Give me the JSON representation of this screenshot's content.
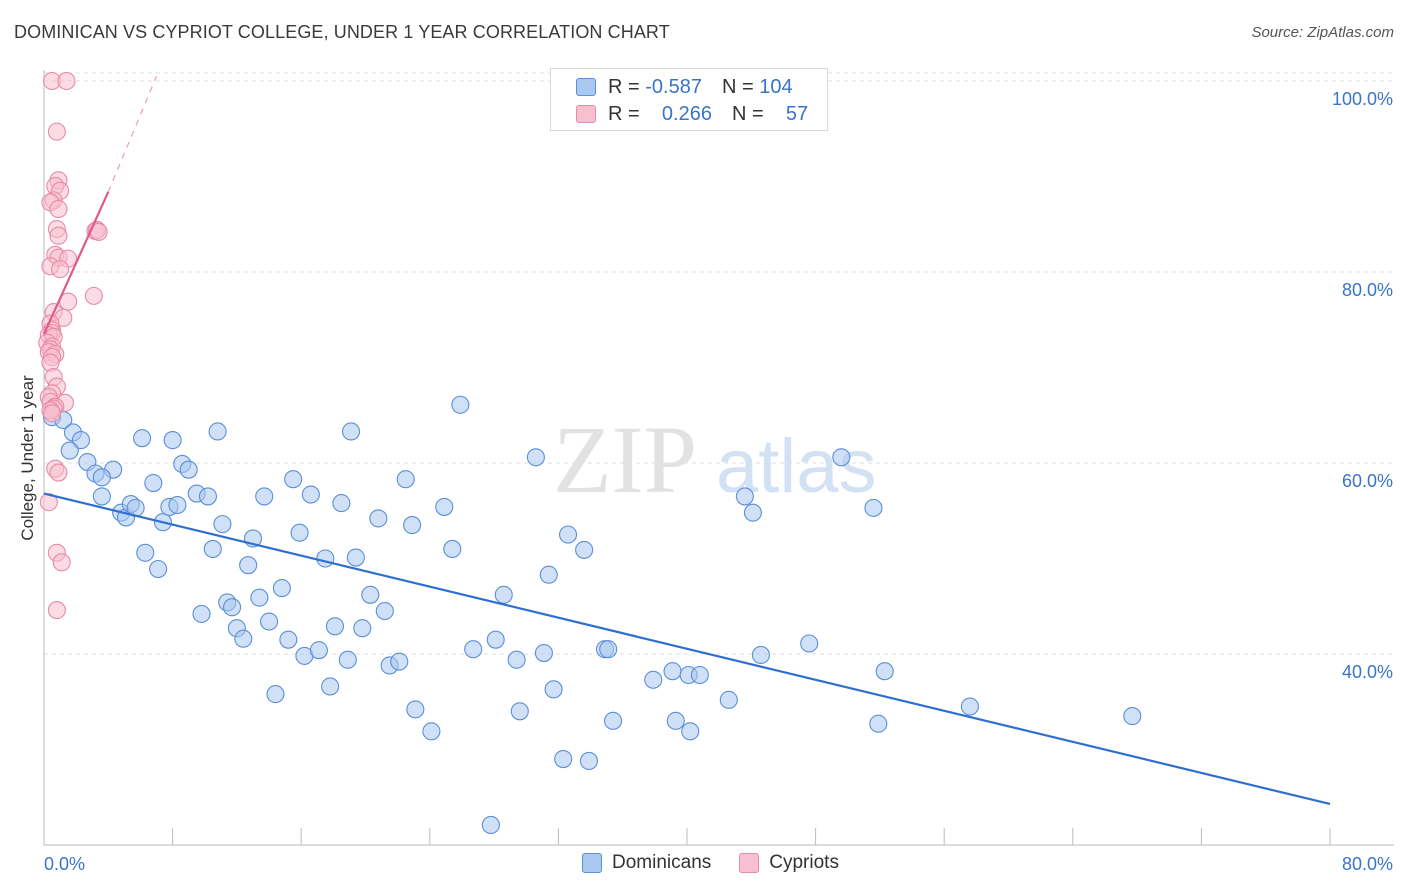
{
  "title": "DOMINICAN VS CYPRIOT COLLEGE, UNDER 1 YEAR CORRELATION CHART",
  "source": "Source: ZipAtlas.com",
  "watermark": {
    "zip": "ZIP",
    "atlas": "atlas"
  },
  "legend": {
    "r_label": "R =",
    "n_label": "N =",
    "rows": [
      {
        "name": "Dominicans",
        "r": "-0.587",
        "n": "104",
        "fill": "#a9c8f0",
        "stroke": "#5b8fd6"
      },
      {
        "name": "Cypriots",
        "r": "0.266",
        "n": "57",
        "fill": "#f7bfd0",
        "stroke": "#e88aa8"
      }
    ]
  },
  "chart_data": {
    "type": "scatter",
    "title": "DOMINICAN VS CYPRIOT COLLEGE, UNDER 1 YEAR CORRELATION CHART",
    "xlabel": "",
    "ylabel": "College, Under 1 year",
    "xlim": [
      0,
      80
    ],
    "ylim": [
      22,
      102
    ],
    "x_tick_labels": [
      "0.0%",
      "80.0%"
    ],
    "y_ticks": [
      40,
      60,
      80,
      100
    ],
    "y_tick_labels": [
      "40.0%",
      "60.0%",
      "80.0%",
      "100.0%"
    ],
    "grid": true,
    "legend_position": "top-center",
    "series": [
      {
        "name": "Dominicans",
        "color": "#5b8fd6",
        "fill": "#a9c8f0",
        "trend": {
          "x": [
            0,
            80
          ],
          "y": [
            56.8,
            24.3
          ],
          "style": "solid",
          "color": "#2e6fd0"
        },
        "points": [
          [
            0.5,
            64.8
          ],
          [
            1.2,
            64.5
          ],
          [
            1.8,
            63.2
          ],
          [
            2.3,
            62.4
          ],
          [
            1.6,
            61.3
          ],
          [
            2.7,
            60.1
          ],
          [
            3.2,
            58.9
          ],
          [
            4.3,
            59.3
          ],
          [
            3.6,
            58.5
          ],
          [
            3.6,
            56.5
          ],
          [
            4.8,
            54.8
          ],
          [
            5.1,
            54.3
          ],
          [
            5.4,
            55.7
          ],
          [
            5.7,
            55.3
          ],
          [
            6.1,
            62.6
          ],
          [
            6.3,
            50.6
          ],
          [
            6.8,
            57.9
          ],
          [
            7.1,
            48.9
          ],
          [
            7.4,
            53.8
          ],
          [
            7.8,
            55.4
          ],
          [
            8.0,
            62.4
          ],
          [
            8.3,
            55.6
          ],
          [
            8.6,
            59.9
          ],
          [
            9.0,
            59.3
          ],
          [
            9.5,
            56.8
          ],
          [
            9.8,
            44.2
          ],
          [
            10.2,
            56.5
          ],
          [
            10.5,
            51.0
          ],
          [
            10.8,
            63.3
          ],
          [
            11.1,
            53.6
          ],
          [
            11.4,
            45.4
          ],
          [
            11.7,
            44.9
          ],
          [
            12.0,
            42.7
          ],
          [
            12.4,
            41.6
          ],
          [
            12.7,
            49.3
          ],
          [
            13.0,
            52.1
          ],
          [
            13.4,
            45.9
          ],
          [
            13.7,
            56.5
          ],
          [
            14.0,
            43.4
          ],
          [
            14.4,
            35.8
          ],
          [
            14.8,
            46.9
          ],
          [
            15.2,
            41.5
          ],
          [
            15.5,
            58.3
          ],
          [
            15.9,
            52.7
          ],
          [
            16.2,
            39.8
          ],
          [
            16.6,
            56.7
          ],
          [
            17.1,
            40.4
          ],
          [
            17.5,
            50.0
          ],
          [
            17.8,
            36.6
          ],
          [
            18.1,
            42.9
          ],
          [
            18.5,
            55.8
          ],
          [
            18.9,
            39.4
          ],
          [
            19.1,
            63.3
          ],
          [
            19.4,
            50.1
          ],
          [
            19.8,
            42.7
          ],
          [
            20.3,
            46.2
          ],
          [
            20.8,
            54.2
          ],
          [
            21.2,
            44.5
          ],
          [
            21.5,
            38.8
          ],
          [
            22.1,
            39.2
          ],
          [
            22.5,
            58.3
          ],
          [
            22.9,
            53.5
          ],
          [
            23.1,
            34.2
          ],
          [
            24.1,
            31.9
          ],
          [
            24.9,
            55.4
          ],
          [
            25.4,
            51.0
          ],
          [
            25.9,
            66.1
          ],
          [
            26.7,
            40.5
          ],
          [
            27.8,
            22.1
          ],
          [
            28.1,
            41.5
          ],
          [
            28.6,
            46.2
          ],
          [
            29.4,
            39.4
          ],
          [
            29.6,
            34.0
          ],
          [
            30.6,
            60.6
          ],
          [
            31.1,
            40.1
          ],
          [
            31.4,
            48.3
          ],
          [
            31.7,
            36.3
          ],
          [
            32.3,
            29.0
          ],
          [
            32.6,
            52.5
          ],
          [
            33.6,
            50.9
          ],
          [
            33.9,
            28.8
          ],
          [
            34.9,
            40.5
          ],
          [
            35.1,
            40.5
          ],
          [
            35.4,
            33.0
          ],
          [
            37.9,
            37.3
          ],
          [
            39.1,
            38.2
          ],
          [
            39.3,
            33.0
          ],
          [
            40.1,
            37.8
          ],
          [
            40.2,
            31.9
          ],
          [
            40.8,
            37.8
          ],
          [
            42.6,
            35.2
          ],
          [
            43.6,
            56.5
          ],
          [
            44.1,
            54.8
          ],
          [
            44.6,
            39.9
          ],
          [
            47.6,
            41.1
          ],
          [
            49.6,
            60.6
          ],
          [
            51.6,
            55.3
          ],
          [
            51.9,
            32.7
          ],
          [
            52.3,
            38.2
          ],
          [
            57.6,
            34.5
          ],
          [
            67.7,
            33.5
          ]
        ]
      },
      {
        "name": "Cypriots",
        "color": "#e88aa8",
        "fill": "#f7bfd0",
        "trend": {
          "x": [
            0,
            4.0
          ],
          "y": [
            73.5,
            88.4
          ],
          "style": "solid",
          "color": "#e05a88",
          "dashed_extension": {
            "x": [
              4.0,
              7.0
            ],
            "y": [
              88.4,
              100.5
            ]
          }
        },
        "points": [
          [
            0.5,
            100.0
          ],
          [
            1.4,
            100.0
          ],
          [
            0.8,
            94.7
          ],
          [
            0.9,
            89.6
          ],
          [
            0.7,
            89.0
          ],
          [
            1.0,
            88.5
          ],
          [
            0.6,
            87.5
          ],
          [
            0.4,
            87.3
          ],
          [
            0.9,
            86.6
          ],
          [
            0.8,
            84.5
          ],
          [
            0.9,
            83.8
          ],
          [
            3.2,
            84.3
          ],
          [
            3.3,
            84.4
          ],
          [
            3.4,
            84.2
          ],
          [
            0.7,
            81.8
          ],
          [
            0.9,
            81.5
          ],
          [
            1.5,
            81.4
          ],
          [
            0.4,
            80.6
          ],
          [
            1.0,
            80.3
          ],
          [
            3.1,
            77.5
          ],
          [
            1.5,
            76.9
          ],
          [
            0.6,
            75.8
          ],
          [
            1.2,
            75.2
          ],
          [
            0.4,
            74.6
          ],
          [
            0.5,
            73.9
          ],
          [
            0.5,
            73.6
          ],
          [
            0.3,
            73.4
          ],
          [
            0.6,
            73.2
          ],
          [
            0.2,
            72.6
          ],
          [
            0.5,
            72.2
          ],
          [
            0.4,
            71.9
          ],
          [
            0.3,
            71.6
          ],
          [
            0.7,
            71.4
          ],
          [
            0.5,
            71.1
          ],
          [
            0.4,
            70.5
          ],
          [
            0.6,
            69.0
          ],
          [
            0.8,
            68.0
          ],
          [
            0.5,
            67.3
          ],
          [
            0.3,
            66.9
          ],
          [
            0.4,
            66.4
          ],
          [
            1.3,
            66.3
          ],
          [
            0.7,
            65.9
          ],
          [
            0.6,
            65.7
          ],
          [
            0.4,
            65.5
          ],
          [
            0.5,
            65.2
          ],
          [
            0.7,
            59.4
          ],
          [
            0.9,
            59.0
          ],
          [
            0.3,
            55.9
          ],
          [
            0.8,
            50.6
          ],
          [
            1.1,
            49.6
          ],
          [
            0.8,
            44.6
          ]
        ]
      }
    ]
  }
}
